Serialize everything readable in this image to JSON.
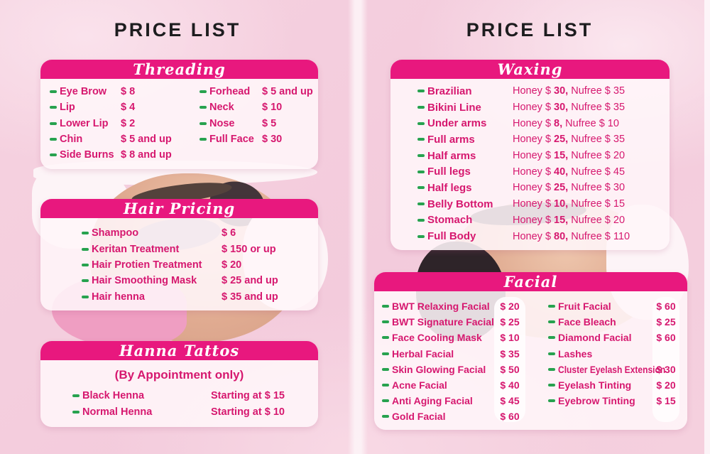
{
  "colors": {
    "header_bar": "#e8187e",
    "item_text": "#d6186f",
    "bullet_green": "#27a24f",
    "title_black": "#1d1d1f",
    "background_pink": "#f5d0de",
    "card_body": "#fff6f9"
  },
  "panels": {
    "left": {
      "title": "PRICE LIST"
    },
    "right": {
      "title": "PRICE LIST"
    }
  },
  "sections": {
    "threading": {
      "title": "Threading",
      "col1": [
        {
          "label": "Eye Brow",
          "price": "$ 8"
        },
        {
          "label": "Lip",
          "price": "$ 4"
        },
        {
          "label": "Lower Lip",
          "price": "$ 2"
        },
        {
          "label": "Chin",
          "price": "$ 5 and up"
        },
        {
          "label": "Side Burns",
          "price": "$ 8 and up"
        }
      ],
      "col2": [
        {
          "label": "Forhead",
          "price": "$ 5 and up"
        },
        {
          "label": "Neck",
          "price": "$ 10"
        },
        {
          "label": "Nose",
          "price": "$ 5"
        },
        {
          "label": "Full Face",
          "price": "$ 30"
        }
      ]
    },
    "hair": {
      "title": "Hair Pricing",
      "items": [
        {
          "label": "Shampoo",
          "price": "$ 6"
        },
        {
          "label": "Keritan Treatment",
          "price": "$ 150 or up"
        },
        {
          "label": "Hair Protien Treatment",
          "price": "$ 20"
        },
        {
          "label": "Hair Smoothing Mask",
          "price": "$ 25 and up"
        },
        {
          "label": "Hair henna",
          "price": "$ 35 and up"
        }
      ]
    },
    "henna": {
      "title": "Hanna Tattos",
      "note": "(By Appointment only)",
      "items": [
        {
          "label": "Black Henna",
          "price": "Starting at $ 15"
        },
        {
          "label": "Normal Henna",
          "price": "Starting at $ 10"
        }
      ]
    },
    "waxing": {
      "title": "Waxing",
      "honey_prefix": "Honey $",
      "nufree_prefix": "Nufree $",
      "items": [
        {
          "label": "Brazilian",
          "honey": "30",
          "nufree": "35"
        },
        {
          "label": "Bikini Line",
          "honey": "30",
          "nufree": "35"
        },
        {
          "label": "Under arms",
          "honey": "8",
          "nufree": "10"
        },
        {
          "label": "Full arms",
          "honey": "25",
          "nufree": "35"
        },
        {
          "label": "Half arms",
          "honey": "15",
          "nufree": "20"
        },
        {
          "label": "Full legs",
          "honey": "40",
          "nufree": "45"
        },
        {
          "label": "Half legs",
          "honey": "25",
          "nufree": "30"
        },
        {
          "label": "Belly Bottom",
          "honey": "10",
          "nufree": "15"
        },
        {
          "label": "Stomach",
          "honey": "15",
          "nufree": "20"
        },
        {
          "label": "Full Body",
          "honey": "80",
          "nufree": "110"
        }
      ]
    },
    "facial": {
      "title": "Facial",
      "col1": [
        {
          "label": "BWT Relaxing Facial",
          "price": "$ 20"
        },
        {
          "label": "BWT Signature Facial",
          "price": "$ 25"
        },
        {
          "label": "Face Cooling Mask",
          "price": "$ 10"
        },
        {
          "label": "Herbal Facial",
          "price": "$ 35"
        },
        {
          "label": "Skin Glowing Facial",
          "price": "$ 50"
        },
        {
          "label": "Acne Facial",
          "price": "$ 40"
        },
        {
          "label": "Anti Aging Facial",
          "price": "$ 45"
        },
        {
          "label": "Gold Facial",
          "price": "$ 60"
        }
      ],
      "col2": [
        {
          "label": "Fruit Facial",
          "price": "$ 60"
        },
        {
          "label": "Face Bleach",
          "price": "$ 25"
        },
        {
          "label": "Diamond Facial",
          "price": "$ 60"
        },
        {
          "label": "Lashes",
          "price": ""
        },
        {
          "label": "Cluster Eyelash Extension",
          "price": "$ 30",
          "condensed": true
        },
        {
          "label": "Eyelash Tinting",
          "price": "$ 20"
        },
        {
          "label": "Eyebrow Tinting",
          "price": "$ 15"
        }
      ]
    }
  }
}
